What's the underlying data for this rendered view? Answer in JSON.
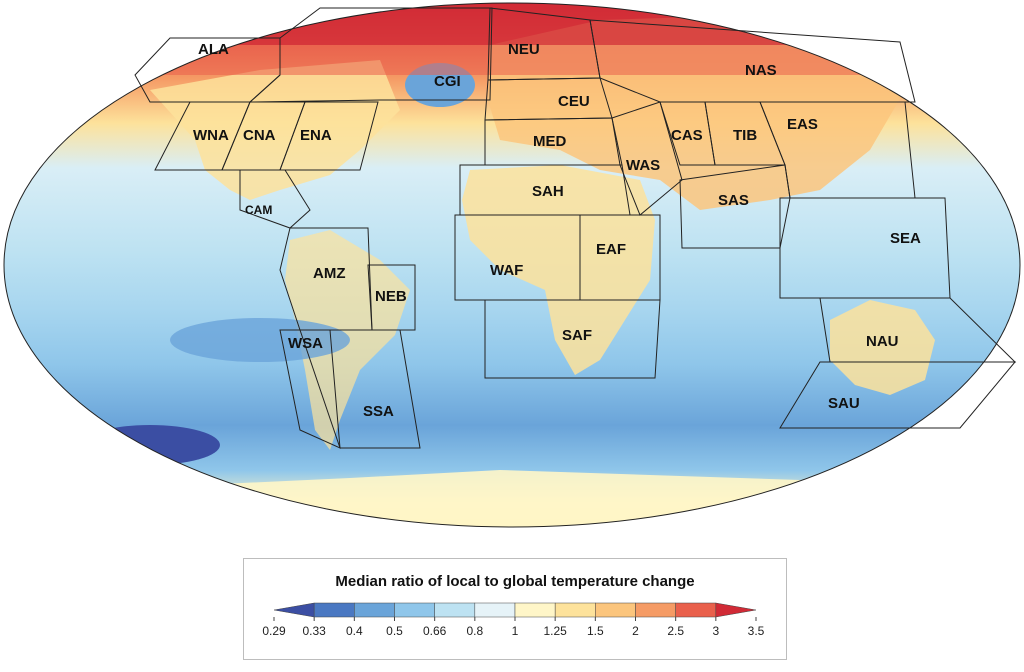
{
  "map": {
    "regions": [
      {
        "code": "ALA"
      },
      {
        "code": "CGI"
      },
      {
        "code": "NEU"
      },
      {
        "code": "NAS"
      },
      {
        "code": "WNA"
      },
      {
        "code": "CNA"
      },
      {
        "code": "ENA"
      },
      {
        "code": "CEU"
      },
      {
        "code": "MED"
      },
      {
        "code": "CAS"
      },
      {
        "code": "TIB"
      },
      {
        "code": "EAS"
      },
      {
        "code": "WAS"
      },
      {
        "code": "SAH"
      },
      {
        "code": "CAM"
      },
      {
        "code": "SAS"
      },
      {
        "code": "SEA"
      },
      {
        "code": "AMZ"
      },
      {
        "code": "NEB"
      },
      {
        "code": "WAF"
      },
      {
        "code": "EAF"
      },
      {
        "code": "SAF"
      },
      {
        "code": "WSA"
      },
      {
        "code": "NAU"
      },
      {
        "code": "SAU"
      },
      {
        "code": "SSA"
      }
    ]
  },
  "legend": {
    "title": "Median ratio of local to global temperature change",
    "ticks": [
      "0.29",
      "0.33",
      "0.4",
      "0.5",
      "0.66",
      "0.8",
      "1",
      "1.25",
      "1.5",
      "2",
      "2.5",
      "3",
      "3.5"
    ],
    "colors": [
      "#3b4ea3",
      "#4a78c2",
      "#6aa4d9",
      "#8fc6ea",
      "#bde2f2",
      "#e6f3f8",
      "#fff6c8",
      "#fde29b",
      "#fbc57d",
      "#f59b65",
      "#e9604c",
      "#d12a36"
    ]
  }
}
